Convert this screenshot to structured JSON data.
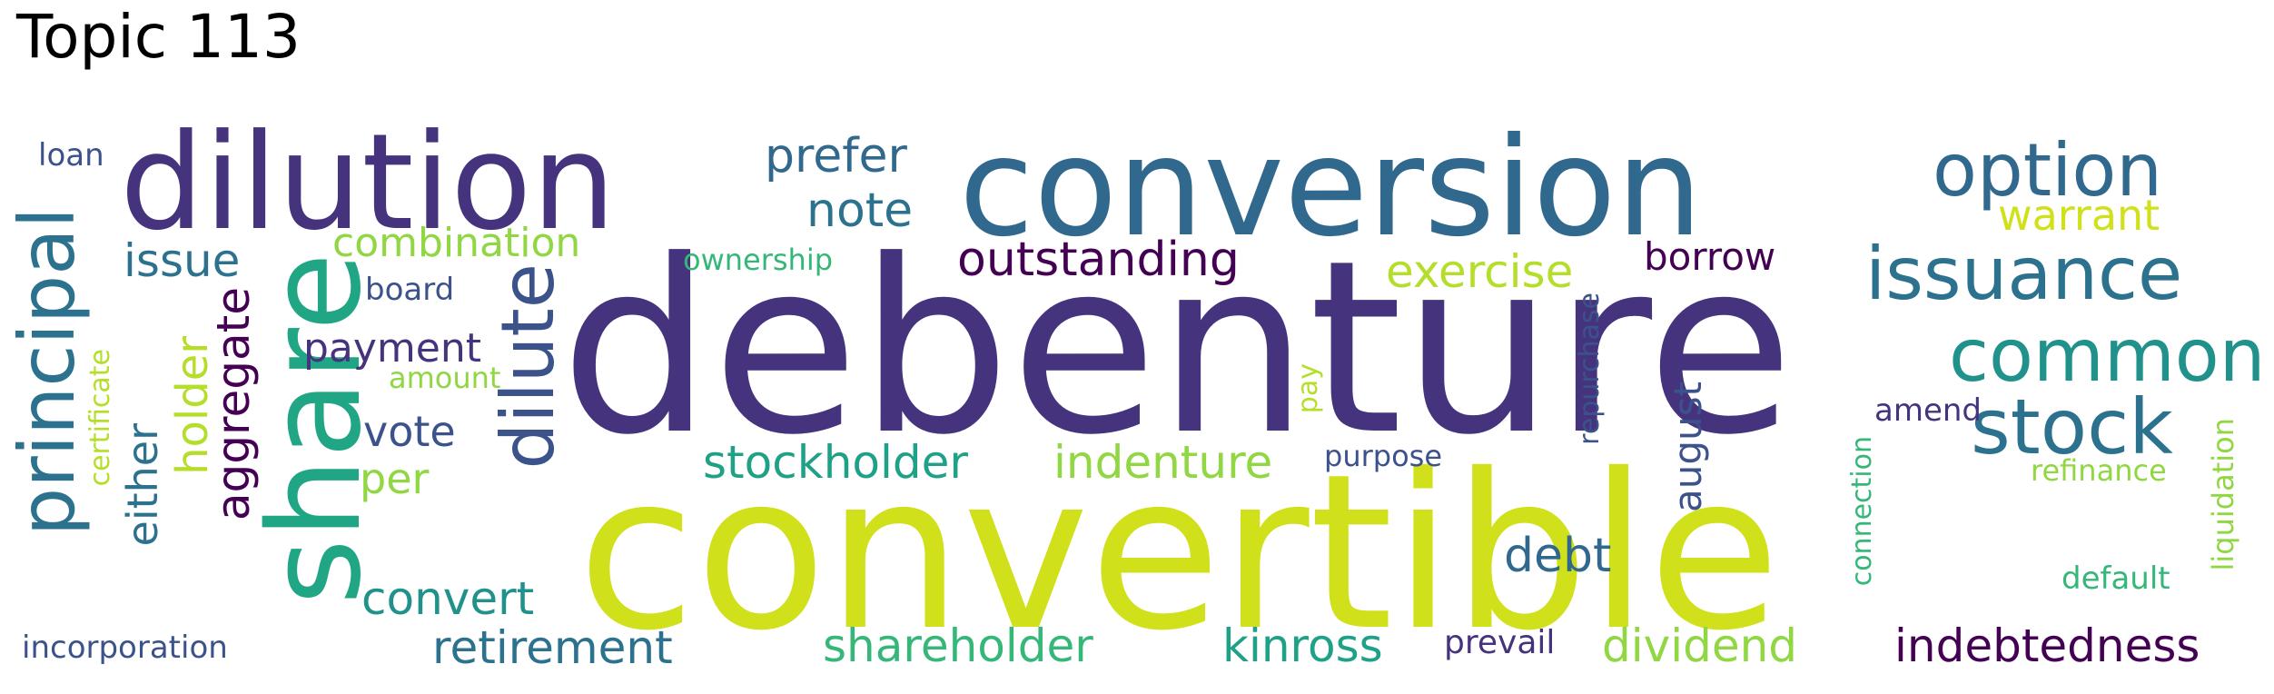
{
  "title": "Topic 113",
  "colors": {
    "dark_purple": "#440154",
    "indigo": "#46337e",
    "slate_blue": "#3b528b",
    "steel_blue": "#31688e",
    "teal_blue": "#2c728e",
    "teal": "#21918c",
    "green_teal": "#1fa187",
    "green": "#35b779",
    "lime": "#90d743",
    "yellow_green": "#b5de2b",
    "chartreuse": "#d0e11c"
  },
  "words": {
    "debenture": "debenture",
    "convertible": "convertible",
    "conversion": "conversion",
    "dilution": "dilution",
    "share": "share",
    "principal": "principal",
    "option": "option",
    "issuance": "issuance",
    "common": "common",
    "stock": "stock",
    "prefer": "prefer",
    "dilute": "dilute",
    "note": "note",
    "warrant": "warrant",
    "outstanding": "outstanding",
    "exercise": "exercise",
    "borrow": "borrow",
    "issue": "issue",
    "combination": "combination",
    "ownership": "ownership",
    "board": "board",
    "loan": "loan",
    "payment": "payment",
    "amount": "amount",
    "aggregate": "aggregate",
    "holder": "holder",
    "vote": "vote",
    "per": "per",
    "either": "either",
    "certificate": "certificate",
    "stockholder": "stockholder",
    "indenture": "indenture",
    "purpose": "purpose",
    "pay": "pay",
    "repurchase": "repurchase",
    "august": "august",
    "amend": "amend",
    "refinance": "refinance",
    "debt": "debt",
    "convert": "convert",
    "retirement": "retirement",
    "shareholder": "shareholder",
    "kinross": "kinross",
    "prevail": "prevail",
    "dividend": "dividend",
    "indebtedness": "indebtedness",
    "incorporation": "incorporation",
    "connection": "connection",
    "default": "default",
    "liquidation": "liquidation"
  }
}
